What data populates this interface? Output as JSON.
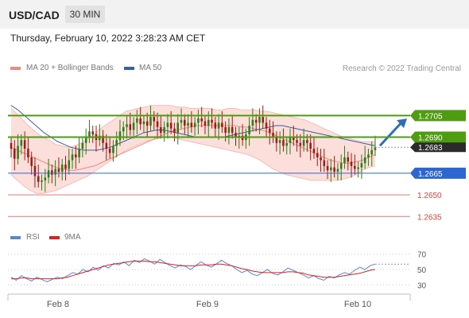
{
  "header": {
    "symbol": "USD/CAD",
    "timeframe": "30 MIN"
  },
  "datetime": "Thursday, February 10, 2022 3:28:23 AM CET",
  "legend": {
    "bb_label": "MA 20 + Bollinger Bands",
    "bb_color": "#f08a80",
    "ma50_label": "MA 50",
    "ma50_color": "#3a5fa0",
    "rsi_label": "RSI",
    "rsi_color": "#5b86d6",
    "ma9_label": "9MA",
    "ma9_color": "#e02020"
  },
  "credit": "Research © 2022 Trading Central",
  "colors": {
    "bull": "#2e7d16",
    "bear": "#a11a12",
    "resistance": "#4f9b12",
    "current": "#2b2b2b",
    "pivot": "#2d66d0",
    "support": "#e04040",
    "arrow": "#2d6fb5"
  },
  "chart_data": [
    {
      "type": "candlestick",
      "title": "USD/CAD",
      "interval": "30 MIN",
      "ylim": [
        1.2628,
        1.273
      ],
      "x_ticks": [
        "Feb 8",
        "Feb 9",
        "Feb 10"
      ],
      "current_price": "1.2683",
      "levels": [
        {
          "label": "1.2705",
          "value": 1.2705,
          "kind": "resistance"
        },
        {
          "label": "1.2690",
          "value": 1.269,
          "kind": "resistance"
        },
        {
          "label": "1.2665",
          "value": 1.2665,
          "kind": "pivot"
        },
        {
          "label": "1.2650",
          "value": 1.265,
          "kind": "support"
        },
        {
          "label": "1.2635",
          "value": 1.2635,
          "kind": "support"
        }
      ],
      "close": [
        1.2682,
        1.2675,
        1.2684,
        1.2688,
        1.2682,
        1.2676,
        1.267,
        1.2663,
        1.2659,
        1.266,
        1.2662,
        1.2667,
        1.2664,
        1.2668,
        1.2666,
        1.2671,
        1.2668,
        1.2674,
        1.2678,
        1.2676,
        1.2682,
        1.2686,
        1.269,
        1.2694,
        1.2692,
        1.2688,
        1.2691,
        1.2686,
        1.2682,
        1.2679,
        1.2684,
        1.2688,
        1.2694,
        1.2697,
        1.2699,
        1.2695,
        1.27,
        1.2703,
        1.2699,
        1.2701,
        1.2698,
        1.2704,
        1.2701,
        1.2697,
        1.2693,
        1.2697,
        1.27,
        1.2696,
        1.2693,
        1.27,
        1.2702,
        1.2698,
        1.27,
        1.2697,
        1.27,
        1.2703,
        1.2701,
        1.2698,
        1.2702,
        1.27,
        1.2696,
        1.27,
        1.2697,
        1.2693,
        1.2697,
        1.2693,
        1.269,
        1.2691,
        1.2688,
        1.2692,
        1.2698,
        1.2702,
        1.27,
        1.2704,
        1.27,
        1.2696,
        1.2693,
        1.269,
        1.2686,
        1.2688,
        1.2684,
        1.2686,
        1.269,
        1.2688,
        1.2686,
        1.2684,
        1.2688,
        1.2686,
        1.2682,
        1.2679,
        1.2676,
        1.2674,
        1.267,
        1.2667,
        1.2669,
        1.2666,
        1.2668,
        1.2672,
        1.2676,
        1.2673,
        1.267,
        1.2668,
        1.2669,
        1.2672,
        1.2676,
        1.2678,
        1.2681,
        1.2683
      ],
      "open": [
        1.2686,
        1.2682,
        1.2675,
        1.2684,
        1.2688,
        1.2682,
        1.2676,
        1.267,
        1.2663,
        1.2659,
        1.266,
        1.2662,
        1.2667,
        1.2664,
        1.2668,
        1.2666,
        1.2671,
        1.2668,
        1.2674,
        1.2678,
        1.2676,
        1.2682,
        1.2686,
        1.269,
        1.2694,
        1.2692,
        1.2688,
        1.2691,
        1.2686,
        1.2682,
        1.2679,
        1.2684,
        1.2688,
        1.2694,
        1.2697,
        1.2699,
        1.2695,
        1.27,
        1.2703,
        1.2699,
        1.2701,
        1.2698,
        1.2704,
        1.2701,
        1.2697,
        1.2693,
        1.2697,
        1.27,
        1.2696,
        1.2693,
        1.27,
        1.2702,
        1.2698,
        1.27,
        1.2697,
        1.27,
        1.2703,
        1.2701,
        1.2698,
        1.2702,
        1.27,
        1.2696,
        1.27,
        1.2697,
        1.2693,
        1.2697,
        1.2693,
        1.269,
        1.2691,
        1.2688,
        1.2692,
        1.2698,
        1.2702,
        1.27,
        1.2704,
        1.27,
        1.2696,
        1.2693,
        1.269,
        1.2686,
        1.2688,
        1.2684,
        1.2686,
        1.269,
        1.2688,
        1.2686,
        1.2684,
        1.2688,
        1.2686,
        1.2682,
        1.2679,
        1.2676,
        1.2674,
        1.267,
        1.2667,
        1.2669,
        1.2666,
        1.2668,
        1.2672,
        1.2676,
        1.2673,
        1.267,
        1.2668,
        1.2669,
        1.2672,
        1.2676,
        1.2678,
        1.2681
      ],
      "ma20": [
        1.2683,
        1.2681,
        1.2679,
        1.2677,
        1.2675,
        1.2673,
        1.2671,
        1.2669,
        1.2668,
        1.2667,
        1.2667,
        1.2668,
        1.2669,
        1.267,
        1.2672,
        1.2674,
        1.2676,
        1.2678,
        1.268,
        1.2682,
        1.2684,
        1.2686,
        1.2688,
        1.269,
        1.2692,
        1.2694,
        1.2695,
        1.2696,
        1.2697,
        1.2698,
        1.2698,
        1.2698,
        1.2698,
        1.2698,
        1.2698,
        1.2698,
        1.2697,
        1.2697,
        1.2696,
        1.2695,
        1.2694,
        1.2692,
        1.269,
        1.2688,
        1.2686,
        1.2684,
        1.2682,
        1.268,
        1.2678,
        1.2676,
        1.2674,
        1.2673,
        1.2672,
        1.2672,
        1.2673,
        1.2674,
        1.2676,
        1.2678
      ],
      "ma50": [
        1.2712,
        1.2709,
        1.2705,
        1.2701,
        1.2697,
        1.2693,
        1.269,
        1.2687,
        1.2685,
        1.2683,
        1.2682,
        1.2681,
        1.2681,
        1.2681,
        1.2682,
        1.2683,
        1.2685,
        1.2687,
        1.2689,
        1.2691,
        1.2693,
        1.2694,
        1.2695,
        1.2695,
        1.2694,
        1.2693,
        1.2692,
        1.2691,
        1.269,
        1.269,
        1.269,
        1.269,
        1.269,
        1.2691,
        1.2692,
        1.2693,
        1.2694,
        1.2695,
        1.2696,
        1.2697,
        1.2698,
        1.2698,
        1.2697,
        1.2696,
        1.2695,
        1.2694,
        1.2693,
        1.2692,
        1.2691,
        1.269,
        1.2689,
        1.2688,
        1.2687,
        1.2686,
        1.2685,
        1.2684
      ],
      "bb_upper": [
        1.271,
        1.2706,
        1.2701,
        1.2697,
        1.2693,
        1.269,
        1.2688,
        1.2685,
        1.2684,
        1.2683,
        1.2684,
        1.2686,
        1.2689,
        1.2692,
        1.2696,
        1.2699,
        1.2702,
        1.2705,
        1.2708,
        1.2709,
        1.271,
        1.2711,
        1.2712,
        1.2712,
        1.2712,
        1.2712,
        1.2711,
        1.2711,
        1.271,
        1.271,
        1.271,
        1.271,
        1.2709,
        1.2709,
        1.271,
        1.271,
        1.2709,
        1.2709,
        1.2709,
        1.2708,
        1.2708,
        1.2707,
        1.2706,
        1.2705,
        1.2704,
        1.2703,
        1.2702,
        1.27,
        1.2698,
        1.2696,
        1.2694,
        1.2692,
        1.269,
        1.2689,
        1.2688,
        1.2687,
        1.2687,
        1.2687
      ],
      "bb_lower": [
        1.2664,
        1.266,
        1.2656,
        1.2653,
        1.2651,
        1.2651,
        1.2652,
        1.2653,
        1.2655,
        1.2657,
        1.2659,
        1.2661,
        1.2663,
        1.2666,
        1.2669,
        1.2672,
        1.2675,
        1.2678,
        1.2681,
        1.2683,
        1.2685,
        1.2687,
        1.2688,
        1.2689,
        1.269,
        1.269,
        1.2689,
        1.2688,
        1.2687,
        1.2686,
        1.2685,
        1.2684,
        1.2683,
        1.2682,
        1.2681,
        1.268,
        1.2679,
        1.2678,
        1.2676,
        1.2674,
        1.2671,
        1.2668,
        1.2666,
        1.2664,
        1.2663,
        1.2662,
        1.2661,
        1.266,
        1.266,
        1.266,
        1.266,
        1.266,
        1.2661,
        1.2662,
        1.2664,
        1.2667,
        1.2669,
        1.267
      ]
    },
    {
      "type": "line",
      "title": "RSI",
      "ylim": [
        20,
        80
      ],
      "y_ticks": [
        "70",
        "50",
        "30"
      ],
      "x_ticks": [
        "Feb 8",
        "Feb 9",
        "Feb 10"
      ],
      "series": [
        {
          "name": "RSI",
          "values": [
            40,
            36,
            42,
            38,
            35,
            40,
            37,
            34,
            37,
            40,
            38,
            42,
            46,
            44,
            50,
            47,
            53,
            49,
            55,
            52,
            58,
            56,
            60,
            55,
            62,
            59,
            64,
            61,
            57,
            63,
            59,
            55,
            52,
            56,
            54,
            50,
            55,
            60,
            56,
            53,
            57,
            62,
            58,
            55,
            50,
            46,
            49,
            44,
            42,
            46,
            50,
            45,
            43,
            47,
            52,
            49,
            46,
            43,
            39,
            42,
            38,
            36,
            41,
            39,
            43,
            46,
            44,
            49,
            53,
            50,
            55,
            57
          ]
        },
        {
          "name": "9MA",
          "values": [
            38,
            38,
            39,
            39,
            38,
            38,
            38,
            38,
            38,
            38,
            39,
            40,
            42,
            44,
            46,
            48,
            50,
            52,
            54,
            56,
            57,
            58,
            59,
            60,
            61,
            61,
            61,
            60,
            60,
            59,
            58,
            57,
            56,
            55,
            55,
            55,
            55,
            56,
            56,
            56,
            57,
            57,
            56,
            55,
            53,
            51,
            50,
            48,
            47,
            46,
            46,
            46,
            46,
            46,
            47,
            47,
            46,
            45,
            43,
            42,
            41,
            40,
            40,
            40,
            41,
            42,
            43,
            44,
            45,
            47,
            49,
            50
          ]
        }
      ]
    }
  ]
}
